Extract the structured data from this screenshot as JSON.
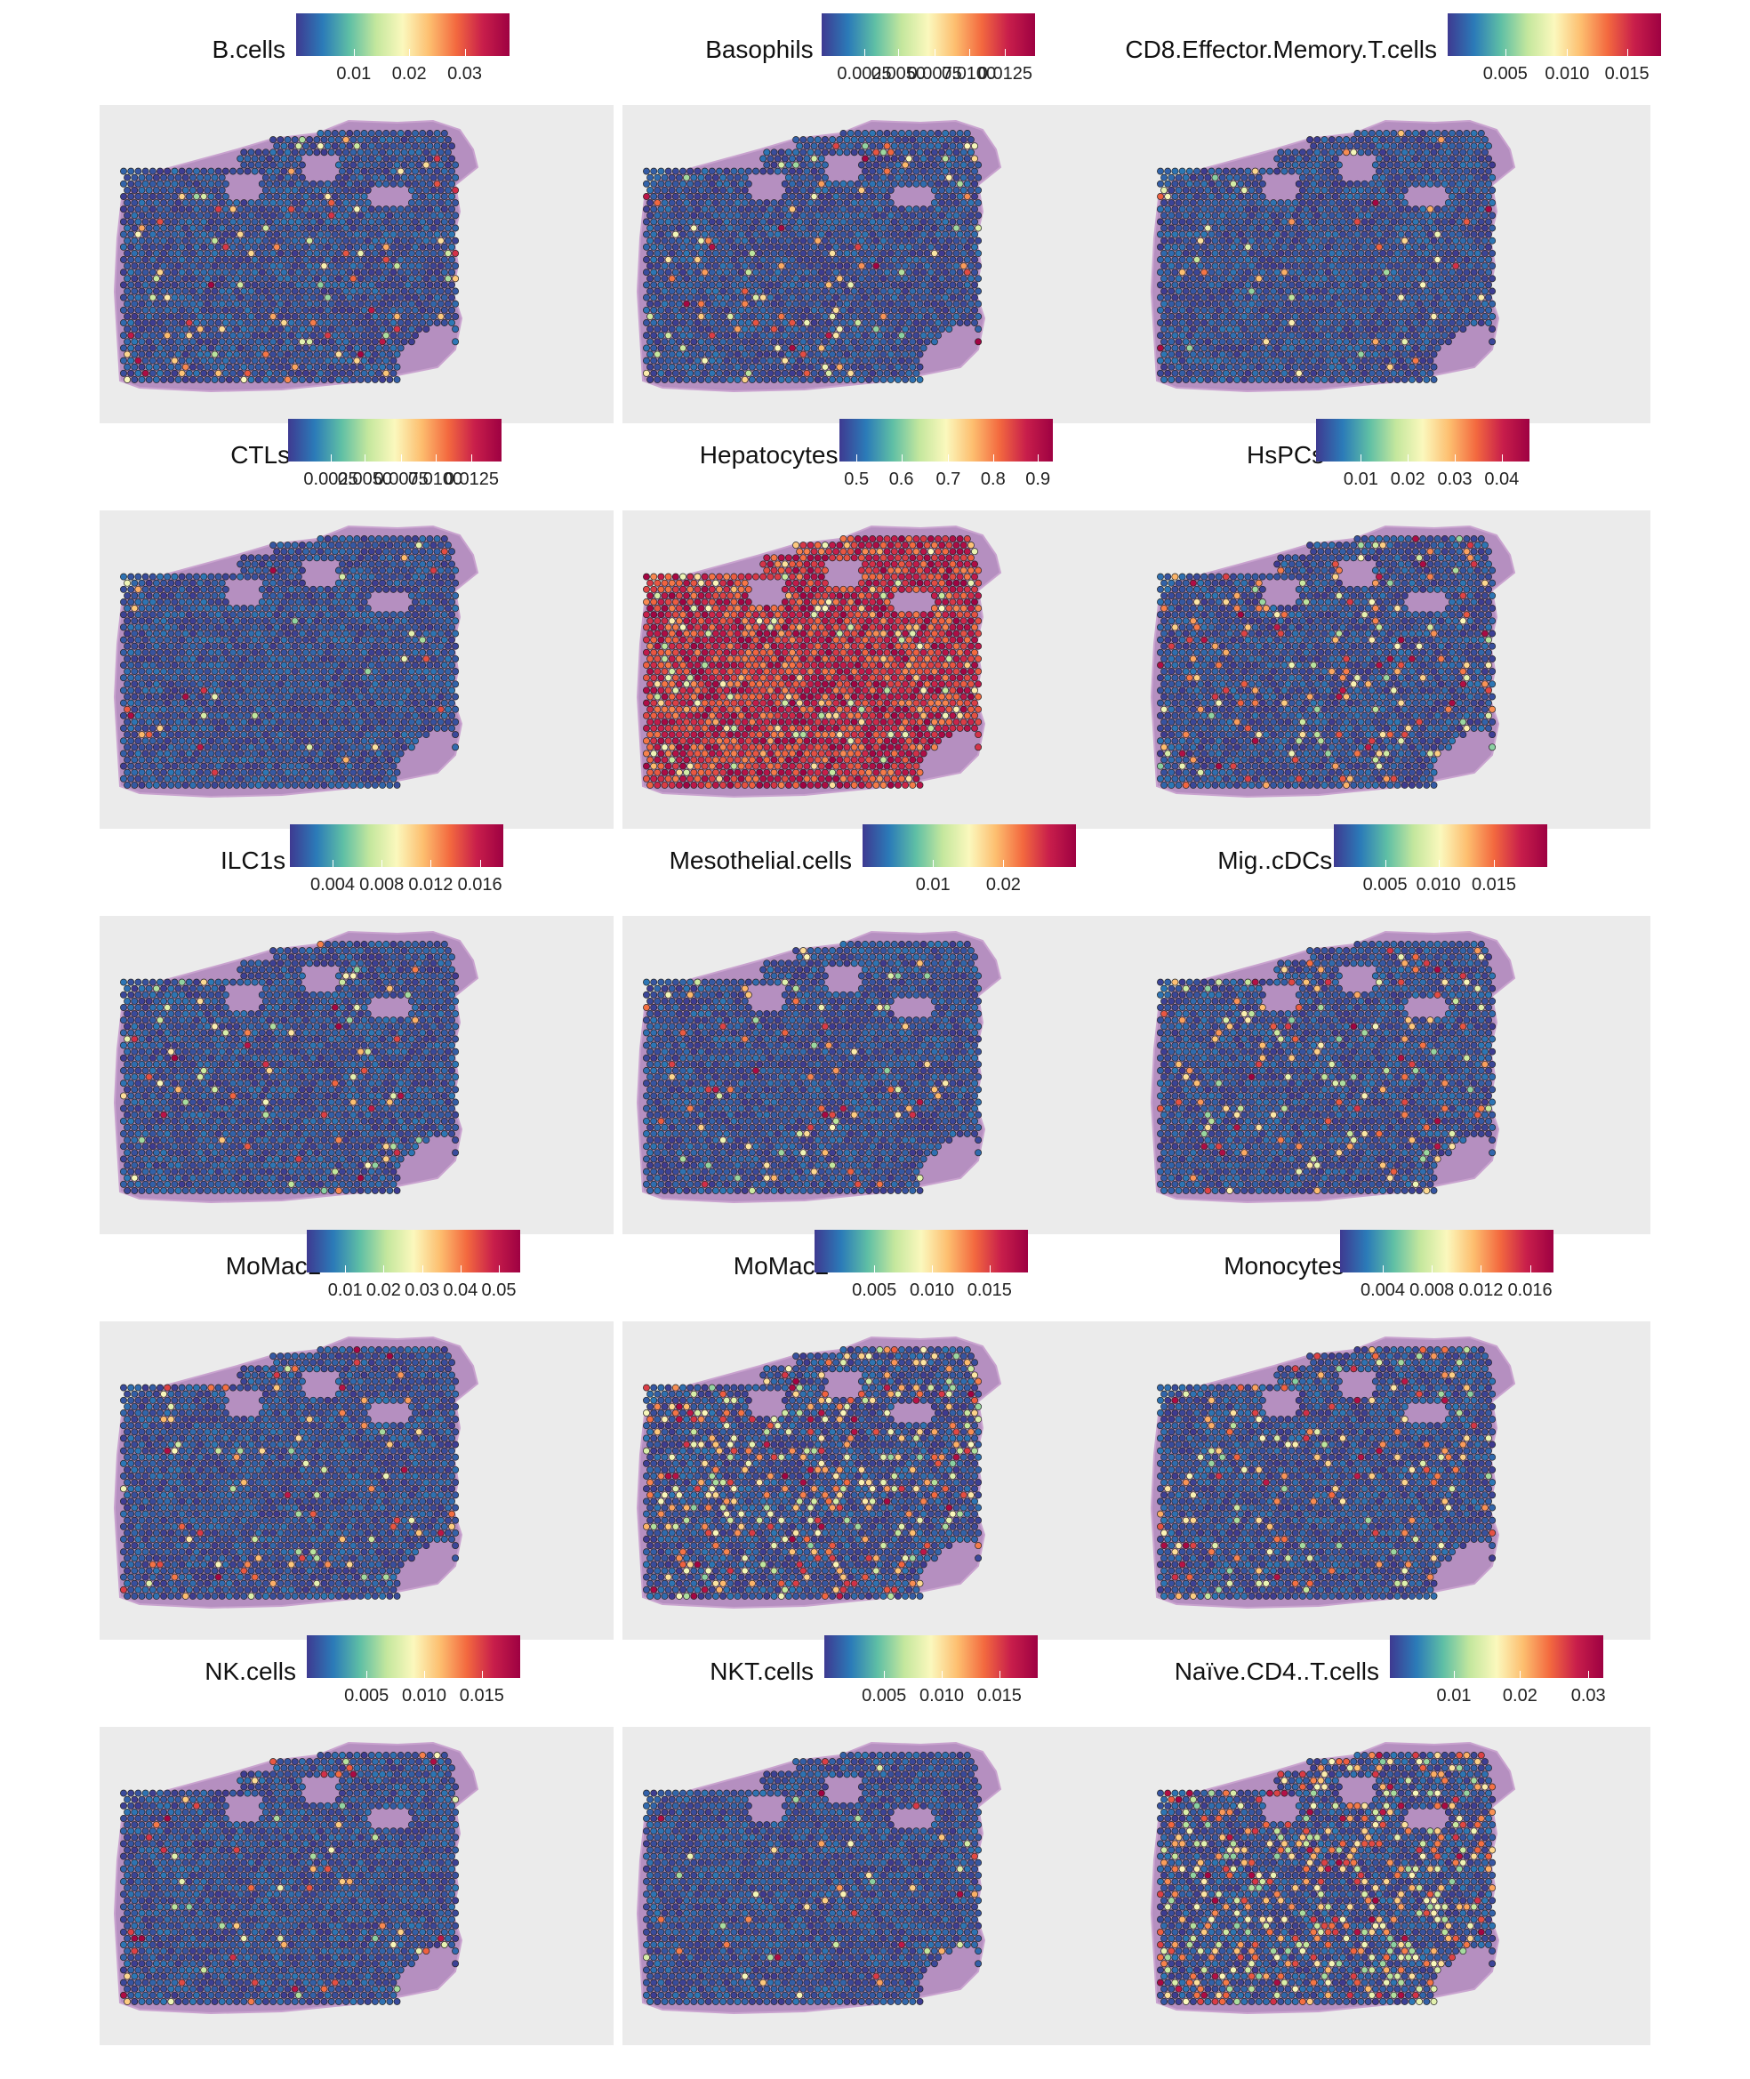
{
  "colors": {
    "panel_bg": "#ebebeb",
    "tissue": "#b58fc0",
    "spot_outline": "#222222",
    "palette": [
      "#3e3a91",
      "#2b7bb8",
      "#5fbfa5",
      "#c4e79d",
      "#fbf8bd",
      "#fdbe6f",
      "#f3693f",
      "#c81e4b",
      "#9e0142"
    ]
  },
  "chart_data": [
    {
      "type": "heatmap",
      "title": "B.cells",
      "legend_ticks": [
        "0.01",
        "0.02",
        "0.03"
      ],
      "legend_tick_pos": [
        0.27,
        0.53,
        0.79
      ],
      "range": [
        0.003,
        0.036
      ],
      "level": 0.06,
      "hotspots": 0.06
    },
    {
      "type": "heatmap",
      "title": "Basophils",
      "legend_ticks": [
        "0.0025",
        "0.0050",
        "0.0075",
        "0.0100",
        "0.0125"
      ],
      "legend_tick_pos": [
        0.2,
        0.36,
        0.53,
        0.69,
        0.86
      ],
      "range": [
        0.0005,
        0.0145
      ],
      "level": 0.05,
      "hotspots": 0.06
    },
    {
      "type": "heatmap",
      "title": "CD8.Effector.Memory.T.cells",
      "legend_ticks": [
        "0.005",
        "0.010",
        "0.015"
      ],
      "legend_tick_pos": [
        0.27,
        0.56,
        0.84
      ],
      "range": [
        0.0003,
        0.018
      ],
      "level": 0.03,
      "hotspots": 0.03
    },
    {
      "type": "heatmap",
      "title": "CTLs",
      "legend_ticks": [
        "0.0025",
        "0.0050",
        "0.0075",
        "0.0100",
        "0.0125"
      ],
      "legend_tick_pos": [
        0.2,
        0.36,
        0.53,
        0.69,
        0.86
      ],
      "range": [
        0.0005,
        0.0145
      ],
      "level": 0.03,
      "hotspots": 0.02
    },
    {
      "type": "heatmap",
      "title": "Hepatocytes",
      "legend_ticks": [
        "0.5",
        "0.6",
        "0.7",
        "0.8",
        "0.9"
      ],
      "legend_tick_pos": [
        0.08,
        0.29,
        0.51,
        0.72,
        0.93
      ],
      "range": [
        0.46,
        0.93
      ],
      "level": 0.85,
      "hotspots": 0.08
    },
    {
      "type": "heatmap",
      "title": "HsPCs",
      "legend_ticks": [
        "0.01",
        "0.02",
        "0.03",
        "0.04"
      ],
      "legend_tick_pos": [
        0.21,
        0.43,
        0.65,
        0.87
      ],
      "range": [
        0.001,
        0.046
      ],
      "level": 0.12,
      "hotspots": 0.12
    },
    {
      "type": "heatmap",
      "title": "ILC1s",
      "legend_ticks": [
        "0.004",
        "0.008",
        "0.012",
        "0.016"
      ],
      "legend_tick_pos": [
        0.2,
        0.43,
        0.66,
        0.89
      ],
      "range": [
        0.0005,
        0.018
      ],
      "level": 0.03,
      "hotspots": 0.04
    },
    {
      "type": "heatmap",
      "title": "Mesothelial.cells",
      "legend_ticks": [
        "0.01",
        "0.02"
      ],
      "legend_tick_pos": [
        0.33,
        0.66
      ],
      "range": [
        0.0005,
        0.03
      ],
      "level": 0.03,
      "hotspots": 0.04
    },
    {
      "type": "heatmap",
      "title": "Mig..cDCs",
      "legend_ticks": [
        "0.005",
        "0.010",
        "0.015"
      ],
      "legend_tick_pos": [
        0.24,
        0.49,
        0.75
      ],
      "range": [
        0.0003,
        0.02
      ],
      "level": 0.1,
      "hotspots": 0.1
    },
    {
      "type": "heatmap",
      "title": "MoMac1",
      "legend_ticks": [
        "0.01",
        "0.02",
        "0.03",
        "0.04",
        "0.05"
      ],
      "legend_tick_pos": [
        0.18,
        0.36,
        0.54,
        0.72,
        0.9
      ],
      "range": [
        0.0005,
        0.056
      ],
      "level": 0.05,
      "hotspots": 0.05
    },
    {
      "type": "heatmap",
      "title": "MoMac2",
      "legend_ticks": [
        "0.005",
        "0.010",
        "0.015"
      ],
      "legend_tick_pos": [
        0.28,
        0.55,
        0.82
      ],
      "range": [
        0.0005,
        0.018
      ],
      "level": 0.18,
      "hotspots": 0.2
    },
    {
      "type": "heatmap",
      "title": "Monocytes",
      "legend_ticks": [
        "0.004",
        "0.008",
        "0.012",
        "0.016"
      ],
      "legend_tick_pos": [
        0.2,
        0.43,
        0.66,
        0.89
      ],
      "range": [
        0.0005,
        0.018
      ],
      "level": 0.1,
      "hotspots": 0.09
    },
    {
      "type": "heatmap",
      "title": "NK.cells",
      "legend_ticks": [
        "0.005",
        "0.010",
        "0.015"
      ],
      "legend_tick_pos": [
        0.28,
        0.55,
        0.82
      ],
      "range": [
        0.0005,
        0.018
      ],
      "level": 0.05,
      "hotspots": 0.05
    },
    {
      "type": "heatmap",
      "title": "NKT.cells",
      "legend_ticks": [
        "0.005",
        "0.010",
        "0.015"
      ],
      "legend_tick_pos": [
        0.28,
        0.55,
        0.82
      ],
      "range": [
        0.0005,
        0.018
      ],
      "level": 0.03,
      "hotspots": 0.03
    },
    {
      "type": "heatmap",
      "title": "Naïve.CD4..T.cells",
      "legend_ticks": [
        "0.01",
        "0.02",
        "0.03"
      ],
      "legend_tick_pos": [
        0.3,
        0.61,
        0.93
      ],
      "range": [
        0.0005,
        0.033
      ],
      "level": 0.3,
      "hotspots": 0.3
    }
  ]
}
